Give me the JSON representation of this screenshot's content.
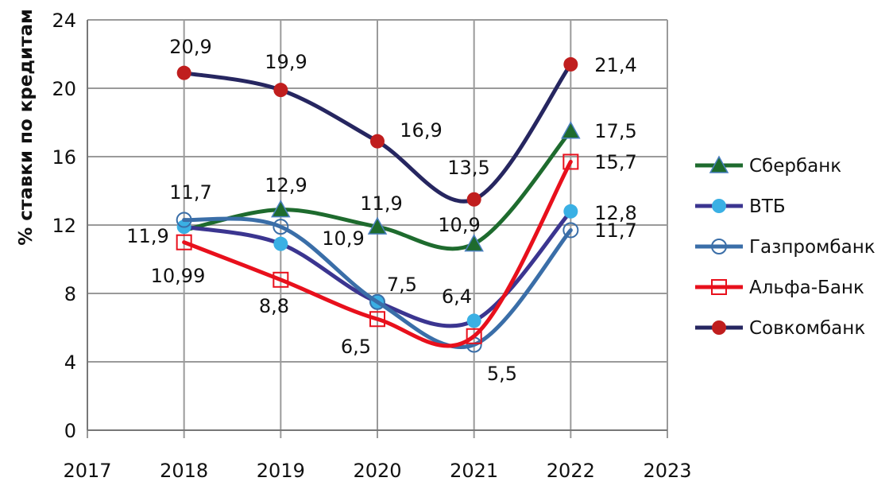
{
  "chart_data": {
    "type": "line",
    "title": "",
    "xlabel": "",
    "ylabel": "% ставки по кредитам",
    "xlim": [
      2017,
      2023
    ],
    "ylim": [
      0,
      24
    ],
    "x_ticks": [
      "2017",
      "2018",
      "2019",
      "2020",
      "2021",
      "2022",
      "2023"
    ],
    "y_ticks": [
      "0",
      "4",
      "8",
      "12",
      "16",
      "20",
      "24"
    ],
    "grid": true,
    "legend_position": "right",
    "x": [
      2018,
      2019,
      2020,
      2021,
      2022
    ],
    "series": [
      {
        "name": "Сбербанк",
        "marker": "triangle",
        "line_color": "#1e6b2e",
        "marker_color": "#1e6b2e",
        "values": [
          11.7,
          12.9,
          11.9,
          10.9,
          17.5
        ],
        "show_first_marker": false
      },
      {
        "name": "ВТБ",
        "marker": "filled-circle",
        "line_color": "#3b3590",
        "marker_color": "#3ab0e4",
        "values": [
          11.9,
          10.9,
          7.5,
          6.4,
          12.8
        ]
      },
      {
        "name": "Газпромбанк",
        "marker": "open-circle",
        "line_color": "#3a6ea8",
        "marker_color": "#3a6ea8",
        "values": [
          12.3,
          11.9,
          7.5,
          5.0,
          11.7
        ]
      },
      {
        "name": "Альфа-Банк",
        "marker": "open-square",
        "line_color": "#e8101c",
        "marker_color": "#e8101c",
        "values": [
          10.99,
          8.8,
          6.5,
          5.5,
          15.7
        ]
      },
      {
        "name": "Совкомбанк",
        "marker": "filled-circle",
        "line_color": "#262660",
        "marker_color": "#c01e1e",
        "values": [
          20.9,
          19.9,
          16.9,
          13.5,
          21.4
        ]
      }
    ],
    "data_labels": [
      {
        "text": "20,9"
      },
      {
        "text": "19,9"
      },
      {
        "text": "16,9"
      },
      {
        "text": "13,5"
      },
      {
        "text": "21,4"
      },
      {
        "text": "17,5"
      },
      {
        "text": "15,7"
      },
      {
        "text": "12,8"
      },
      {
        "text": "11,7"
      },
      {
        "text": "11,7"
      },
      {
        "text": "12,9"
      },
      {
        "text": "11,9"
      },
      {
        "text": "10,9"
      },
      {
        "text": "11,9"
      },
      {
        "text": "10,9"
      },
      {
        "text": "7,5"
      },
      {
        "text": "6,4"
      },
      {
        "text": "10,99"
      },
      {
        "text": "8,8"
      },
      {
        "text": "6,5"
      },
      {
        "text": "5,5"
      }
    ]
  }
}
